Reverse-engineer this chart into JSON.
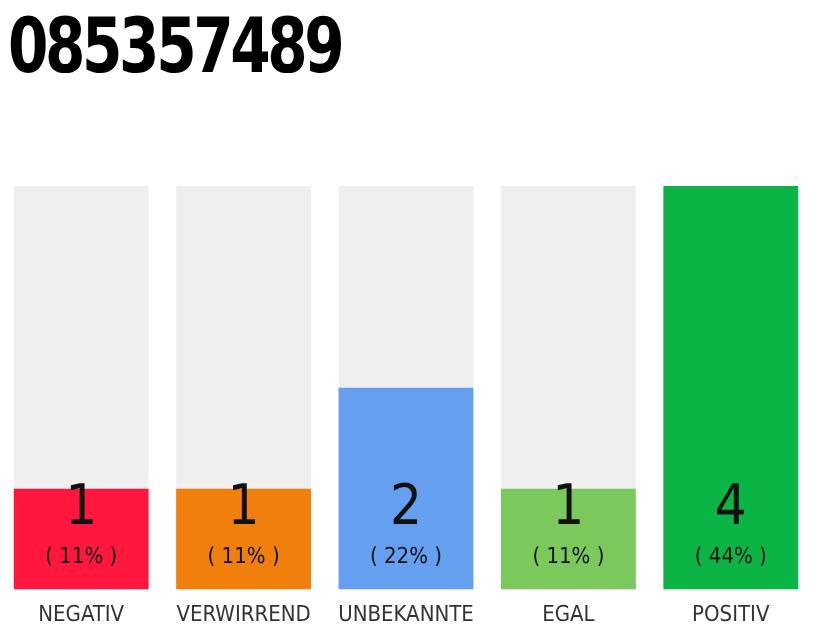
{
  "chart_data": {
    "type": "bar",
    "title": "085357489",
    "categories": [
      "NEGATIV",
      "VERWIRREND",
      "UNBEKANNTE",
      "EGAL",
      "POSITIV"
    ],
    "values": [
      1,
      1,
      2,
      1,
      4
    ],
    "colors": [
      "#ff173d",
      "#f07f0c",
      "#659ff0",
      "#7bc85c",
      "#0bb545"
    ],
    "ylim": [
      0,
      4
    ],
    "data_labels": true,
    "grid": false,
    "legend": false,
    "annotations": [
      "( 11% )",
      "( 11% )",
      "( 22% )",
      "( 11% )",
      "( 44% )"
    ]
  }
}
